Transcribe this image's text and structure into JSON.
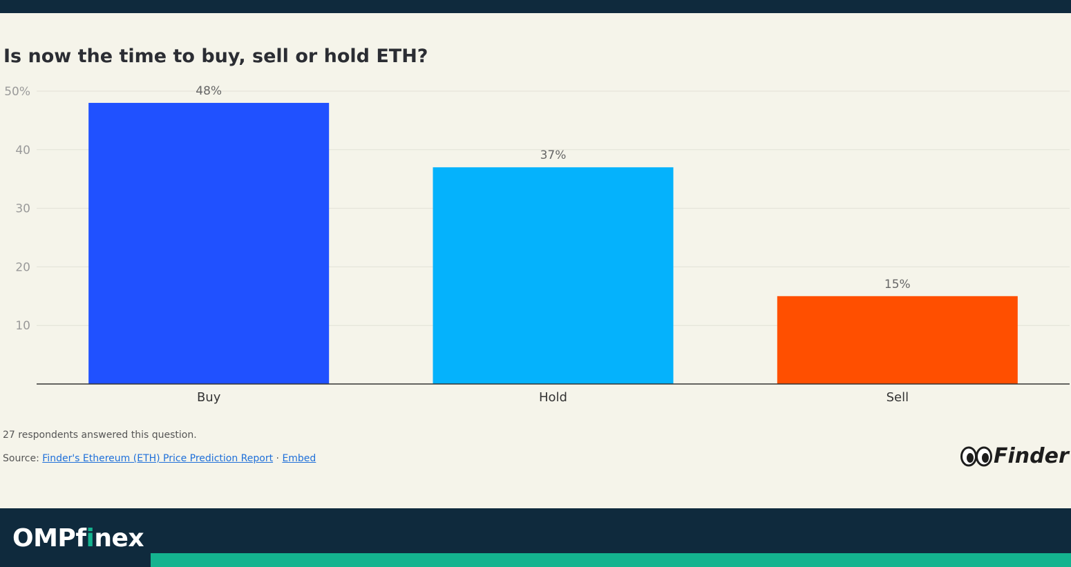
{
  "chart_data": {
    "type": "bar",
    "title": "Is now the time to buy, sell or hold ETH?",
    "categories": [
      "Buy",
      "Hold",
      "Sell"
    ],
    "values": [
      48,
      37,
      15
    ],
    "data_labels": [
      "48%",
      "37%",
      "15%"
    ],
    "colors": [
      "#2051ff",
      "#05b2fc",
      "#ff4f00"
    ],
    "ylim": [
      0,
      50
    ],
    "yticks": [
      10,
      20,
      30,
      40,
      50
    ],
    "ytick_labels": [
      "10",
      "20",
      "30",
      "40",
      "50%"
    ],
    "grid": true,
    "xlabel": "",
    "ylabel": ""
  },
  "footer": {
    "note": "27 respondents answered this question.",
    "source_prefix": "Source: ",
    "source_link": "Finder's Ethereum (ETH) Price Prediction Report",
    "separator": " · ",
    "embed_link": "Embed"
  },
  "logos": {
    "finder": "Finder",
    "brand_prefix": "OMPf",
    "brand_accent": "i",
    "brand_suffix": "nex"
  }
}
